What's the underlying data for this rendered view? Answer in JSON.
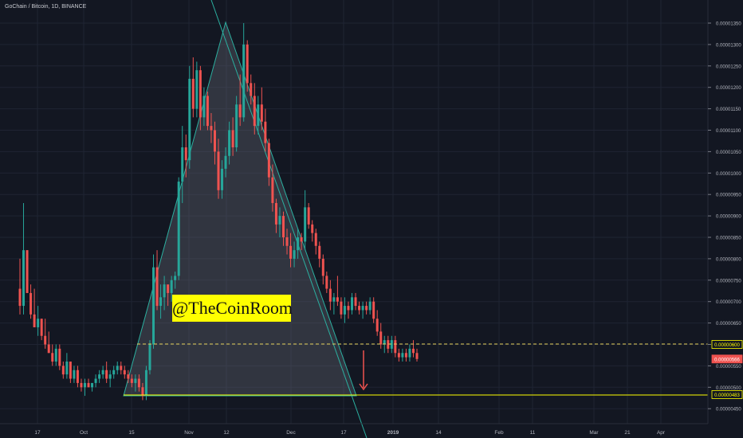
{
  "header": {
    "title": "GoChain / Bitcoin, 1D, BINANCE"
  },
  "watermark": {
    "text": "@TheCoinRoom"
  },
  "colors": {
    "background": "#131722",
    "grid": "#1f2433",
    "up": "#26a69a",
    "down": "#ef5350",
    "triangle_fill": "#6b6e79",
    "triangle_edge": "#2bb0a0",
    "support_line": "#ffff00",
    "dashed_line": "#e5d15a",
    "arrow": "#ef5350",
    "axis_text": "#b2b5be"
  },
  "chart_data": {
    "type": "candlestick",
    "title": "GoChain / Bitcoin, 1D, BINANCE",
    "xlabel": "",
    "ylabel": "",
    "x_tick_labels": [
      "17",
      "Oct",
      "15",
      "Nov",
      "12",
      "Dec",
      "17",
      "2019",
      "14",
      "Feb",
      "11",
      "Mar",
      "21",
      "Apr"
    ],
    "y_tick_labels": [
      "0.00001350",
      "0.00001300",
      "0.00001250",
      "0.00001200",
      "0.00001150",
      "0.00001100",
      "0.00001050",
      "0.00001000",
      "0.00000950",
      "0.00000900",
      "0.00000850",
      "0.00000800",
      "0.00000750",
      "0.00000700",
      "0.00000650",
      "0.00000600",
      "0.00000550",
      "0.00000500",
      "0.00000450"
    ],
    "ylim": [
      4.4e-06,
      1.37e-05
    ],
    "grid": true,
    "price_labels": [
      {
        "text": "0.00000600",
        "value": 6e-06,
        "style": "dashed-yellow"
      },
      {
        "text": "0.00000566",
        "value": 5.66e-06,
        "style": "current-red"
      },
      {
        "text": "0.00000483",
        "value": 4.83e-06,
        "style": "solid-yellow"
      }
    ],
    "candles_ohlc": [
      [
        7.3,
        8.0,
        6.7,
        6.9
      ],
      [
        6.9,
        9.3,
        6.7,
        8.2
      ],
      [
        8.2,
        8.2,
        7.2,
        7.2
      ],
      [
        7.2,
        7.4,
        6.6,
        6.7
      ],
      [
        6.7,
        7.3,
        6.4,
        6.4
      ],
      [
        6.4,
        6.9,
        6.2,
        6.6
      ],
      [
        6.6,
        6.6,
        6.1,
        6.2
      ],
      [
        6.2,
        6.6,
        5.9,
        6.0
      ],
      [
        6.0,
        6.3,
        5.8,
        5.8
      ],
      [
        5.8,
        6.0,
        5.5,
        5.6
      ],
      [
        5.6,
        6.0,
        5.5,
        5.9
      ],
      [
        5.9,
        6.0,
        5.4,
        5.5
      ],
      [
        5.5,
        5.6,
        5.2,
        5.3
      ],
      [
        5.3,
        5.8,
        5.2,
        5.6
      ],
      [
        5.6,
        5.6,
        5.1,
        5.2
      ],
      [
        5.2,
        5.5,
        5.1,
        5.4
      ],
      [
        5.4,
        5.5,
        5.0,
        5.1
      ],
      [
        5.1,
        5.2,
        4.9,
        5.0
      ],
      [
        5.0,
        5.2,
        4.8,
        5.1
      ],
      [
        5.1,
        5.2,
        5.0,
        5.0
      ],
      [
        5.0,
        5.1,
        4.9,
        5.1
      ],
      [
        5.1,
        5.3,
        5.0,
        5.2
      ],
      [
        5.2,
        5.4,
        5.1,
        5.3
      ],
      [
        5.3,
        5.5,
        5.2,
        5.4
      ],
      [
        5.4,
        5.6,
        5.1,
        5.2
      ],
      [
        5.2,
        5.4,
        5.0,
        5.3
      ],
      [
        5.3,
        5.5,
        5.2,
        5.4
      ],
      [
        5.4,
        5.6,
        5.3,
        5.5
      ],
      [
        5.5,
        5.6,
        5.3,
        5.4
      ],
      [
        5.4,
        5.5,
        5.2,
        5.3
      ],
      [
        5.3,
        5.4,
        5.1,
        5.2
      ],
      [
        5.2,
        5.3,
        5.0,
        5.1
      ],
      [
        5.1,
        5.3,
        4.9,
        5.2
      ],
      [
        5.2,
        5.3,
        4.9,
        5.0
      ],
      [
        5.0,
        5.1,
        4.7,
        4.8
      ],
      [
        4.8,
        5.5,
        4.7,
        5.4
      ],
      [
        5.4,
        6.1,
        5.3,
        6.0
      ],
      [
        6.0,
        8.1,
        5.9,
        7.8
      ],
      [
        7.8,
        8.2,
        6.8,
        6.9
      ],
      [
        6.9,
        7.4,
        6.6,
        7.1
      ],
      [
        7.1,
        7.6,
        6.8,
        7.4
      ],
      [
        7.4,
        7.3,
        6.9,
        7.2
      ],
      [
        7.2,
        7.6,
        7.0,
        7.5
      ],
      [
        7.5,
        7.7,
        7.3,
        7.6
      ],
      [
        7.6,
        9.9,
        7.5,
        9.8
      ],
      [
        9.8,
        11.1,
        9.3,
        10.6
      ],
      [
        10.6,
        10.9,
        9.9,
        10.3
      ],
      [
        10.3,
        12.5,
        10.1,
        12.2
      ],
      [
        12.2,
        12.7,
        11.3,
        11.5
      ],
      [
        11.5,
        12.6,
        11.3,
        12.4
      ],
      [
        12.4,
        12.5,
        11.0,
        11.3
      ],
      [
        11.3,
        12.0,
        11.1,
        11.8
      ],
      [
        11.8,
        11.9,
        11.0,
        11.1
      ],
      [
        11.1,
        11.4,
        10.7,
        11.0
      ],
      [
        11.0,
        11.2,
        10.2,
        10.5
      ],
      [
        10.5,
        10.8,
        9.4,
        9.6
      ],
      [
        9.6,
        10.3,
        9.4,
        10.1
      ],
      [
        10.1,
        10.6,
        9.9,
        10.4
      ],
      [
        10.4,
        11.2,
        10.2,
        11.0
      ],
      [
        11.0,
        11.3,
        10.4,
        10.6
      ],
      [
        10.6,
        11.8,
        10.5,
        11.6
      ],
      [
        11.6,
        12.3,
        11.1,
        11.3
      ],
      [
        11.3,
        13.5,
        11.2,
        13.0
      ],
      [
        13.0,
        13.1,
        11.9,
        12.1
      ],
      [
        12.1,
        12.3,
        11.6,
        11.8
      ],
      [
        11.8,
        12.1,
        10.9,
        11.1
      ],
      [
        11.1,
        11.8,
        10.9,
        11.6
      ],
      [
        11.6,
        12.0,
        11.0,
        11.2
      ],
      [
        11.2,
        11.5,
        10.5,
        10.7
      ],
      [
        10.7,
        10.8,
        9.7,
        9.9
      ],
      [
        9.9,
        10.2,
        9.1,
        9.3
      ],
      [
        9.3,
        9.4,
        8.6,
        8.8
      ],
      [
        8.8,
        9.2,
        8.5,
        9.0
      ],
      [
        9.0,
        9.1,
        8.3,
        8.5
      ],
      [
        8.5,
        8.7,
        8.1,
        8.3
      ],
      [
        8.3,
        8.6,
        7.8,
        8.0
      ],
      [
        8.0,
        8.4,
        7.8,
        8.2
      ],
      [
        8.2,
        8.7,
        8.0,
        8.5
      ],
      [
        8.5,
        8.6,
        8.2,
        8.4
      ],
      [
        8.4,
        9.6,
        8.2,
        9.2
      ],
      [
        9.2,
        9.3,
        8.7,
        8.8
      ],
      [
        8.8,
        8.9,
        8.4,
        8.6
      ],
      [
        8.6,
        8.7,
        8.1,
        8.3
      ],
      [
        8.3,
        8.4,
        7.8,
        8.0
      ],
      [
        8.0,
        8.1,
        7.4,
        7.6
      ],
      [
        7.6,
        7.7,
        7.2,
        7.3
      ],
      [
        7.3,
        7.5,
        6.8,
        7.0
      ],
      [
        7.0,
        7.2,
        6.7,
        7.1
      ],
      [
        7.1,
        7.6,
        6.9,
        7.0
      ],
      [
        7.0,
        7.1,
        6.6,
        6.7
      ],
      [
        6.7,
        7.1,
        6.5,
        6.9
      ],
      [
        6.9,
        7.0,
        6.6,
        6.8
      ],
      [
        6.8,
        7.2,
        6.7,
        7.1
      ],
      [
        7.1,
        7.2,
        6.8,
        6.9
      ],
      [
        6.9,
        7.0,
        6.7,
        6.8
      ],
      [
        6.8,
        7.0,
        6.6,
        6.9
      ],
      [
        6.9,
        7.0,
        6.7,
        6.8
      ],
      [
        6.8,
        7.1,
        6.7,
        7.0
      ],
      [
        7.0,
        7.1,
        6.5,
        6.6
      ],
      [
        6.6,
        6.8,
        6.2,
        6.3
      ],
      [
        6.3,
        6.5,
        5.9,
        6.0
      ],
      [
        6.0,
        6.2,
        5.8,
        6.1
      ],
      [
        6.1,
        6.2,
        5.8,
        5.9
      ],
      [
        5.9,
        6.2,
        5.8,
        6.1
      ],
      [
        6.1,
        6.2,
        5.7,
        5.8
      ],
      [
        5.8,
        5.9,
        5.6,
        5.7
      ],
      [
        5.7,
        5.9,
        5.6,
        5.8
      ],
      [
        5.8,
        5.9,
        5.6,
        5.7
      ],
      [
        5.7,
        6.0,
        5.6,
        5.9
      ],
      [
        5.9,
        6.1,
        5.7,
        5.8
      ],
      [
        5.8,
        5.9,
        5.6,
        5.66
      ]
    ]
  }
}
